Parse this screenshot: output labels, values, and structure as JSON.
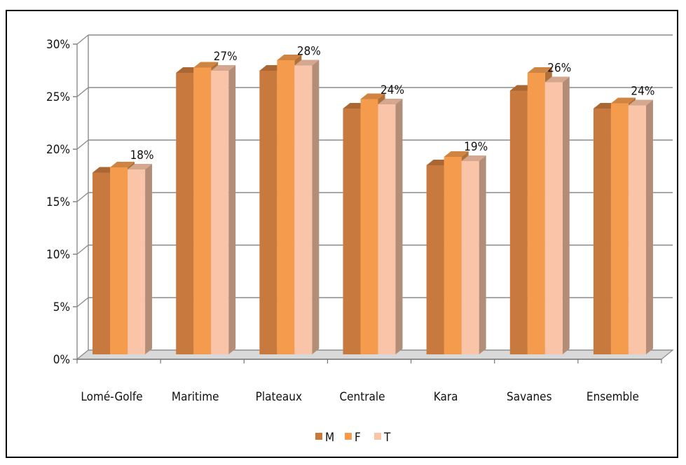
{
  "chart_data": {
    "type": "bar",
    "categories": [
      "Lomé-Golfe",
      "Maritime",
      "Plateaux",
      "Centrale",
      "Kara",
      "Savanes",
      "Ensemble"
    ],
    "series": [
      {
        "name": "M",
        "values": [
          17.3,
          26.8,
          27.0,
          23.4,
          18.0,
          25.1,
          23.4
        ],
        "color": "#c8793d"
      },
      {
        "name": "F",
        "values": [
          17.8,
          27.3,
          28.0,
          24.3,
          18.8,
          26.8,
          23.9
        ],
        "color": "#f59b4d"
      },
      {
        "name": "T",
        "values": [
          17.6,
          27.0,
          27.5,
          23.8,
          18.4,
          25.9,
          23.7
        ],
        "color": "#f9c4a7"
      }
    ],
    "data_labels": [
      "18%",
      "27%",
      "28%",
      "24%",
      "19%",
      "26%",
      "24%"
    ],
    "y_ticks": [
      "0%",
      "5%",
      "10%",
      "15%",
      "20%",
      "25%",
      "30%"
    ],
    "ylim": [
      0,
      30
    ],
    "grid": true,
    "legend_position": "bottom",
    "style": "3d-clustered-column"
  }
}
